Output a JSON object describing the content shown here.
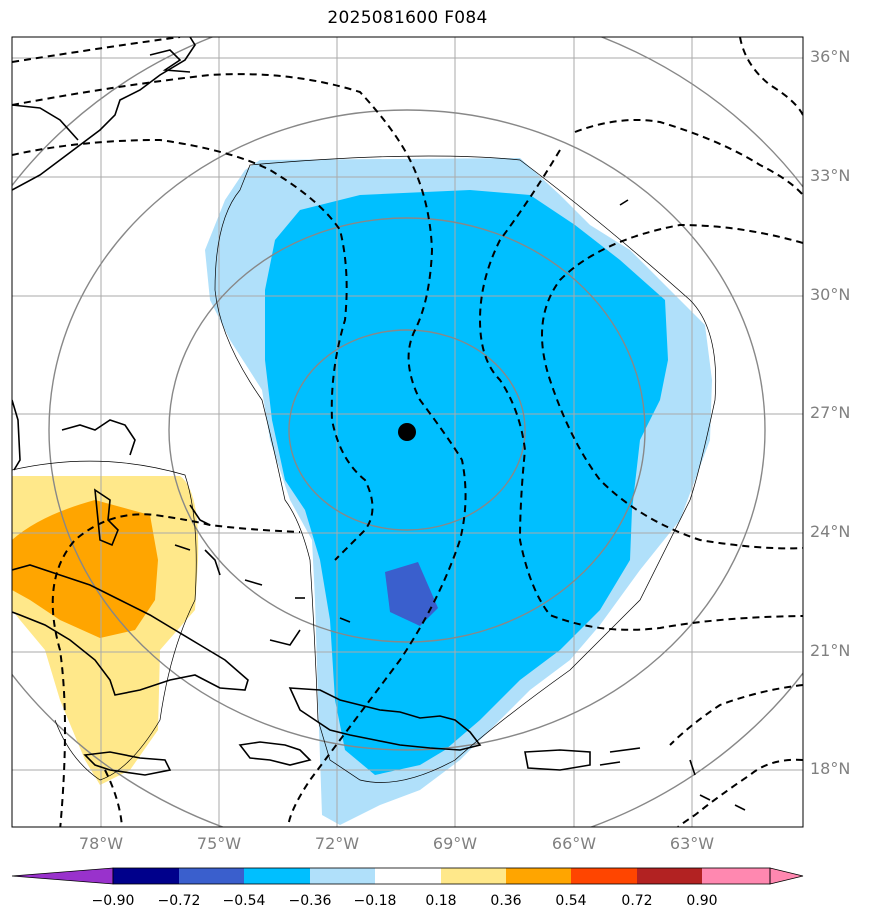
{
  "title": "2025081600 F084",
  "lat_labels": [
    "36°N",
    "33°N",
    "30°N",
    "27°N",
    "24°N",
    "21°N",
    "18°N"
  ],
  "lon_labels": [
    "78°W",
    "75°W",
    "72°W",
    "69°W",
    "66°W",
    "63°W"
  ],
  "colorbar": {
    "ticks": [
      "−0.90",
      "−0.72",
      "−0.54",
      "−0.36",
      "−0.18",
      "0.18",
      "0.36",
      "0.54",
      "0.72",
      "0.90"
    ],
    "colors": [
      "#9932cc",
      "#00008b",
      "#3a5fcd",
      "#00bfff",
      "#b0e0fa",
      "#ffffff",
      "#ffe88a",
      "#ffa500",
      "#ff4500",
      "#b22222",
      "#ff88b0"
    ]
  },
  "storm_center": {
    "lat": 26.5,
    "lon": "70.4°W"
  }
}
